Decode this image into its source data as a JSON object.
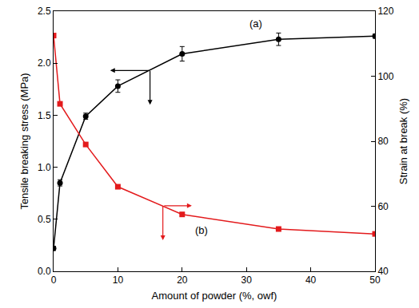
{
  "chart_data": {
    "type": "line",
    "x_label": "Amount of powder (%, owf)",
    "y_label": "Tensile breaking stress (MPa)",
    "y2_label": "Strain at break (%)",
    "xlim": [
      0,
      50
    ],
    "xticks": [
      0,
      10,
      20,
      30,
      40,
      50
    ],
    "ylim": [
      0,
      2.5
    ],
    "yticks": [
      {
        "value": 0,
        "label": "0.0"
      },
      0.5,
      {
        "value": 1,
        "label": "1.0"
      },
      1.5,
      {
        "value": 2,
        "label": "2.0"
      },
      2.5
    ],
    "y2lim": [
      40,
      120
    ],
    "y2ticks": [
      40,
      60,
      80,
      100,
      120
    ],
    "grid": false,
    "series": [
      {
        "name": "(a)",
        "color": "#000000",
        "marker": "circle",
        "line_style": "solid",
        "x": [
          0,
          1,
          5,
          10,
          20,
          35,
          50
        ],
        "values": [
          0.22,
          0.85,
          1.49,
          1.78,
          2.09,
          2.23,
          2.26
        ],
        "error": [
          0.02,
          0.03,
          0.03,
          0.06,
          0.07,
          0.06,
          0.02
        ]
      },
      {
        "name": "(b)",
        "color": "#e31a1c",
        "marker": "square",
        "line_style": "solid",
        "axis": "y2",
        "x": [
          0,
          1,
          5,
          10,
          20,
          35,
          50
        ],
        "values": [
          112.5,
          91.5,
          79,
          66,
          57.5,
          53,
          51.5
        ]
      }
    ]
  }
}
